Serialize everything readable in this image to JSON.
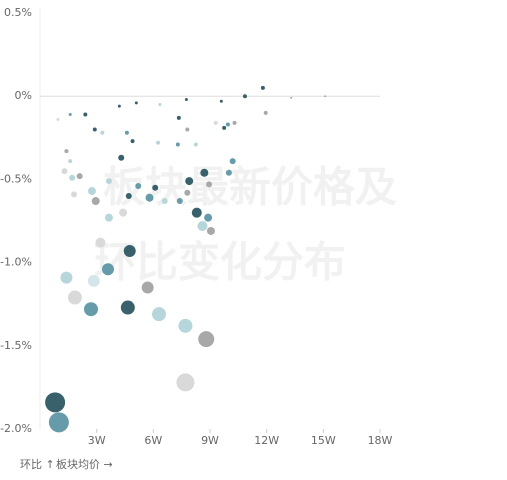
{
  "chart_data": {
    "type": "bubble",
    "title_lines": [
      "板块最新价格及",
      "环比变化分布"
    ],
    "x_label": "板块均价 →",
    "y_label": "环比 ↑",
    "xlim": [
      0,
      18
    ],
    "xticks": [
      {
        "value": 3,
        "label": "3W"
      },
      {
        "value": 6,
        "label": "6W"
      },
      {
        "value": 9,
        "label": "9W"
      },
      {
        "value": 12,
        "label": "12W"
      },
      {
        "value": 15,
        "label": "15W"
      },
      {
        "value": 18,
        "label": "18W"
      }
    ],
    "ylim": [
      -2,
      0.5
    ],
    "yticks": [
      {
        "value": 0.5,
        "label": "0.5%"
      },
      {
        "value": 0,
        "label": "0%"
      },
      {
        "value": -0.5,
        "label": "-0.5%"
      },
      {
        "value": -1,
        "label": "-1.0%"
      },
      {
        "value": -1.5,
        "label": "-1.5%"
      },
      {
        "value": -2,
        "label": "-2.0%"
      }
    ],
    "zero_line": true,
    "x": [
      0.8,
      1.0,
      1.4,
      1.85,
      2.7,
      2.85,
      3.2,
      3.6,
      3.65,
      4.4,
      4.75,
      4.65,
      5.7,
      6.3,
      7.7,
      8.8,
      7.7,
      8.3,
      8.9,
      8.6,
      9.05,
      7.9,
      8.7,
      8.95,
      10.0,
      10.2,
      7.8,
      7.4,
      6.6,
      5.8,
      6.1,
      5.2,
      4.7,
      4.3,
      2.95,
      2.75,
      3.65,
      1.7,
      2.1,
      1.4,
      1.8,
      1.3,
      1.6,
      2.9,
      2.4,
      3.3,
      4.9,
      4.6,
      6.25,
      7.3,
      7.8,
      8.25,
      7.35,
      9.3,
      9.95,
      10.3,
      9.75,
      10.85,
      11.8,
      11.95,
      4.2,
      5.1,
      6.35,
      7.75,
      9.6,
      13.3,
      15.1,
      0.95,
      1.6
    ],
    "y": [
      -1.84,
      -1.96,
      -1.09,
      -1.21,
      -1.28,
      -1.11,
      -0.88,
      -1.04,
      -0.73,
      -0.7,
      -0.93,
      -1.27,
      -1.15,
      -1.31,
      -1.38,
      -1.46,
      -1.72,
      -0.7,
      -0.73,
      -0.78,
      -0.81,
      -0.51,
      -0.46,
      -0.53,
      -0.46,
      -0.39,
      -0.58,
      -0.63,
      -0.63,
      -0.61,
      -0.55,
      -0.54,
      -0.6,
      -0.37,
      -0.63,
      -0.57,
      -0.51,
      -0.49,
      -0.48,
      -0.33,
      -0.59,
      -0.45,
      -0.39,
      -0.2,
      -0.11,
      -0.22,
      -0.27,
      -0.22,
      -0.28,
      -0.29,
      -0.2,
      -0.29,
      -0.13,
      -0.16,
      -0.17,
      -0.16,
      -0.19,
      0,
      0.05,
      -0.1,
      -0.06,
      -0.04,
      -0.05,
      -0.02,
      -0.03,
      -0.01,
      0,
      -0.14,
      -0.11
    ],
    "sizes": [
      100,
      100,
      36,
      49,
      49,
      36,
      25,
      36,
      16,
      16,
      36,
      49,
      36,
      49,
      49,
      64,
      81,
      25,
      16,
      25,
      16,
      16,
      16,
      9,
      9,
      9,
      9,
      9,
      9,
      16,
      9,
      9,
      9,
      9,
      16,
      16,
      9,
      9,
      9,
      4,
      9,
      9,
      4,
      4,
      4,
      4,
      4,
      4,
      4,
      4,
      4,
      4,
      4,
      4,
      4,
      4,
      4,
      4,
      4,
      4,
      2.25,
      2.25,
      2.25,
      2.25,
      2.25,
      1,
      1,
      2.25,
      2.25
    ],
    "colors": [
      "#2e5963",
      "#5e97a5",
      "#b3d4d9",
      "#d7d7d7",
      "#5e97a5",
      "#d2e5e8",
      "#d7d7d7",
      "#5e97a5",
      "#b3d4d9",
      "#d7d7d7",
      "#2e5963",
      "#2e5963",
      "#a3a3a3",
      "#b3d4d9",
      "#b3d4d9",
      "#a3a3a3",
      "#d7d7d7",
      "#2e5963",
      "#5e97a5",
      "#b3d4d9",
      "#a3a3a3",
      "#2e5963",
      "#2e5963",
      "#a3a3a3",
      "#5e97a5",
      "#5e97a5",
      "#a3a3a3",
      "#5e97a5",
      "#b3d4d9",
      "#5e97a5",
      "#2e5963",
      "#5e97a5",
      "#2e5963",
      "#2e5963",
      "#a3a3a3",
      "#b3d4d9",
      "#b3d4d9",
      "#b3d4d9",
      "#a3a3a3",
      "#a3a3a3",
      "#d7d7d7",
      "#d7d7d7",
      "#b3d4d9",
      "#2e5963",
      "#2e5963",
      "#b3d4d9",
      "#2e5963",
      "#5e97a5",
      "#b3d4d9",
      "#5e97a5",
      "#a3a3a3",
      "#b3d4d9",
      "#2e5963",
      "#d7d7d7",
      "#5e97a5",
      "#a3a3a3",
      "#2e5963",
      "#2e5963",
      "#2e5963",
      "#a3a3a3",
      "#2e5963",
      "#2e5963",
      "#b3d4d9",
      "#2e5963",
      "#2e5963",
      "#a3a3a3",
      "#a3a3a3",
      "#d7d7d7",
      "#5e97a5"
    ]
  }
}
